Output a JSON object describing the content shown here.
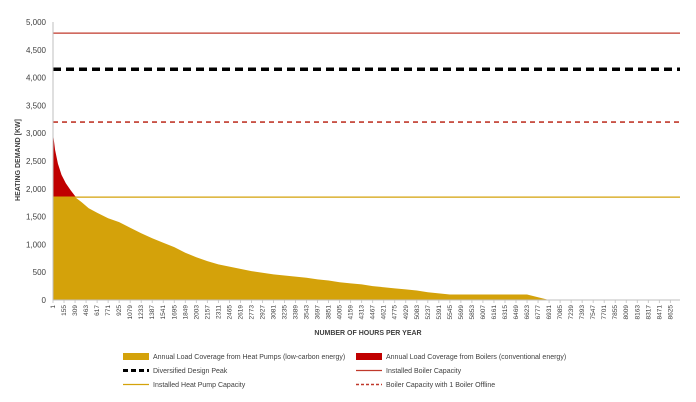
{
  "chart_data": {
    "type": "area",
    "xlabel": "NUMBER OF HOURS PER YEAR",
    "ylabel": "HEATING DEMAND [KW]",
    "ylim": [
      0,
      5000
    ],
    "xlim": [
      1,
      8760
    ],
    "y_ticks": [
      "0",
      "500",
      "1,000",
      "1,500",
      "2,000",
      "2,500",
      "3,000",
      "3,500",
      "4,000",
      "4,500",
      "5,000"
    ],
    "x_ticks": [
      1,
      155,
      309,
      463,
      617,
      771,
      925,
      1079,
      1233,
      1387,
      1541,
      1695,
      1849,
      2003,
      2157,
      2311,
      2465,
      2619,
      2773,
      2927,
      3081,
      3235,
      3389,
      3543,
      3697,
      3851,
      4005,
      4159,
      4313,
      4467,
      4621,
      4775,
      4929,
      5083,
      5237,
      5391,
      5545,
      5699,
      5853,
      6007,
      6161,
      6315,
      6469,
      6623,
      6777,
      6931,
      7085,
      7239,
      7393,
      7547,
      7701,
      7855,
      8009,
      8163,
      8317,
      8471,
      8625
    ],
    "load_duration_curve": {
      "x": [
        1,
        30,
        70,
        120,
        180,
        250,
        309,
        400,
        500,
        617,
        771,
        925,
        1079,
        1233,
        1387,
        1541,
        1695,
        1849,
        2003,
        2157,
        2311,
        2465,
        2619,
        2773,
        2927,
        3081,
        3235,
        3389,
        3543,
        3697,
        3851,
        4005,
        4159,
        4313,
        4467,
        4621,
        4775,
        4929,
        5083,
        5237,
        5391,
        5545,
        6007,
        6469,
        6623,
        6777,
        6931,
        7085
      ],
      "y": [
        3000,
        2700,
        2450,
        2250,
        2100,
        1970,
        1870,
        1760,
        1650,
        1570,
        1470,
        1400,
        1300,
        1200,
        1110,
        1030,
        950,
        850,
        770,
        700,
        640,
        600,
        560,
        520,
        490,
        460,
        440,
        420,
        400,
        370,
        350,
        320,
        300,
        280,
        250,
        230,
        210,
        190,
        170,
        140,
        120,
        100,
        100,
        100,
        100,
        50,
        0,
        0
      ]
    },
    "series": [
      {
        "name": "Annual Load Coverage from Heat Pumps (low-carbon energy)",
        "type": "area",
        "color": "#d4a20a",
        "cap": 1850
      },
      {
        "name": "Annual Load Coverage from Boilers (conventional energy)",
        "type": "area",
        "color": "#c00000",
        "above": 1850
      },
      {
        "name": "Diversified Design Peak",
        "type": "hline",
        "value": 4150,
        "color": "#000000",
        "style": "dashed-thick"
      },
      {
        "name": "Installed Boiler Capacity",
        "type": "hline",
        "value": 4800,
        "color": "#c0392b",
        "style": "solid"
      },
      {
        "name": "Installed Heat Pump Capacity",
        "type": "hline",
        "value": 1850,
        "color": "#d4a20a",
        "style": "solid"
      },
      {
        "name": "Boiler Capacity with 1 Boiler Offline",
        "type": "hline",
        "value": 3200,
        "color": "#c0392b",
        "style": "dashed"
      }
    ],
    "legend_position": "bottom",
    "grid": false
  }
}
